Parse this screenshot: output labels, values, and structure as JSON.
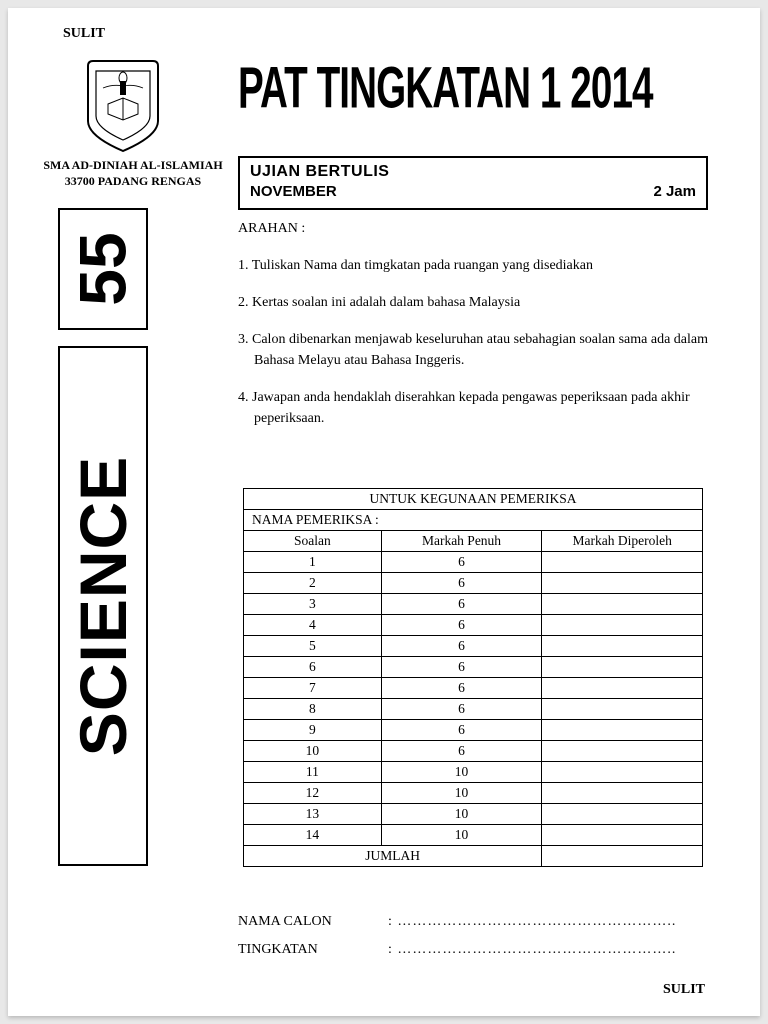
{
  "classification": "SULIT",
  "school": {
    "name": "SMA AD-DINIAH AL-ISLAMIAH",
    "address": "33700 PADANG RENGAS"
  },
  "main_title": "PAT TINGKATAN 1 2014",
  "exam_box": {
    "line1": "UJIAN BERTULIS",
    "month": "NOVEMBER",
    "duration": "2 Jam"
  },
  "side_number": "55",
  "side_subject": "SCIENCE",
  "arahan": {
    "label": "ARAHAN :",
    "items": [
      "1. Tuliskan Nama dan timgkatan pada ruangan yang disediakan",
      "2. Kertas soalan ini adalah dalam bahasa Malaysia",
      "3. Calon dibenarkan menjawab keseluruhan atau sebahagian soalan sama ada dalam Bahasa Melayu atau Bahasa Inggeris.",
      "4. Jawapan anda hendaklah diserahkan kepada pengawas peperiksaan pada akhir peperiksaan."
    ]
  },
  "marks_table": {
    "title": "UNTUK KEGUNAAN PEMERIKSA",
    "examiner_label": "NAMA PEMERIKSA :",
    "col_soalan": "Soalan",
    "col_penuh": "Markah Penuh",
    "col_diperoleh": "Markah Diperoleh",
    "rows": [
      {
        "q": "1",
        "full": "6"
      },
      {
        "q": "2",
        "full": "6"
      },
      {
        "q": "3",
        "full": "6"
      },
      {
        "q": "4",
        "full": "6"
      },
      {
        "q": "5",
        "full": "6"
      },
      {
        "q": "6",
        "full": "6"
      },
      {
        "q": "7",
        "full": "6"
      },
      {
        "q": "8",
        "full": "6"
      },
      {
        "q": "9",
        "full": "6"
      },
      {
        "q": "10",
        "full": "6"
      },
      {
        "q": "11",
        "full": "10"
      },
      {
        "q": "12",
        "full": "10"
      },
      {
        "q": "13",
        "full": "10"
      },
      {
        "q": "14",
        "full": "10"
      }
    ],
    "total_label": "JUMLAH"
  },
  "fields": {
    "nama_label": "NAMA CALON",
    "tingkatan_label": "TINGKATAN",
    "dots": ": ……………………………………………….."
  },
  "colors": {
    "page_bg": "#ffffff",
    "body_bg": "#e8e8e8",
    "text": "#000000",
    "border": "#000000"
  }
}
